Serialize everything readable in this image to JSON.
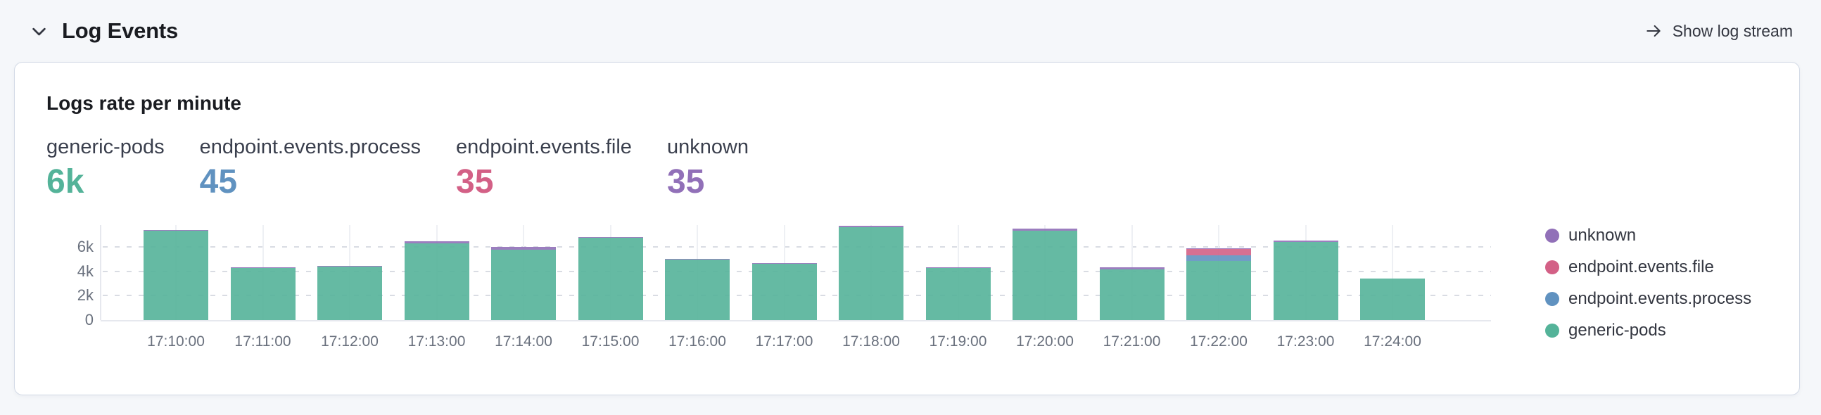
{
  "header": {
    "title": "Log Events",
    "collapse_icon": "chevron-down-icon",
    "action": {
      "label": "Show log stream",
      "icon": "arrow-right-icon"
    }
  },
  "panel": {
    "title": "Logs rate per minute",
    "metrics": [
      {
        "label": "generic-pods",
        "value": "6k",
        "color": "#54B399"
      },
      {
        "label": "endpoint.events.process",
        "value": "45",
        "color": "#6092C0"
      },
      {
        "label": "endpoint.events.file",
        "value": "35",
        "color": "#D36086"
      },
      {
        "label": "unknown",
        "value": "35",
        "color": "#9170B8"
      }
    ],
    "chart_data": {
      "type": "bar",
      "stacked": true,
      "title": "Logs rate per minute",
      "xlabel": "",
      "ylabel": "",
      "x": [
        "17:10:00",
        "17:11:00",
        "17:12:00",
        "17:13:00",
        "17:14:00",
        "17:15:00",
        "17:16:00",
        "17:17:00",
        "17:18:00",
        "17:19:00",
        "17:20:00",
        "17:21:00",
        "17:22:00",
        "17:23:00",
        "17:24:00"
      ],
      "series": [
        {
          "name": "generic-pods",
          "color": "#54B399",
          "values": [
            7340,
            4270,
            4380,
            6300,
            5750,
            6760,
            5000,
            4620,
            7590,
            4290,
            7350,
            4170,
            4850,
            6420,
            3400
          ]
        },
        {
          "name": "endpoint.events.process",
          "color": "#6092C0",
          "values": [
            0,
            0,
            0,
            0,
            0,
            0,
            0,
            0,
            0,
            0,
            0,
            0,
            460,
            0,
            0
          ]
        },
        {
          "name": "endpoint.events.file",
          "color": "#D36086",
          "values": [
            0,
            0,
            0,
            0,
            0,
            0,
            0,
            0,
            0,
            0,
            0,
            0,
            500,
            0,
            0
          ]
        },
        {
          "name": "unknown",
          "color": "#9170B8",
          "values": [
            60,
            40,
            50,
            140,
            250,
            50,
            40,
            40,
            120,
            40,
            130,
            140,
            50,
            120,
            0
          ]
        }
      ],
      "yticks": [
        {
          "label": "0",
          "value": 0
        },
        {
          "label": "2k",
          "value": 2000
        },
        {
          "label": "4k",
          "value": 4000
        },
        {
          "label": "6k",
          "value": 6000
        }
      ],
      "ymax": 7790,
      "grid": "horizontal-dashed, vertical-light",
      "legend_position": "right",
      "legend_order": [
        "unknown",
        "endpoint.events.file",
        "endpoint.events.process",
        "generic-pods"
      ]
    }
  }
}
